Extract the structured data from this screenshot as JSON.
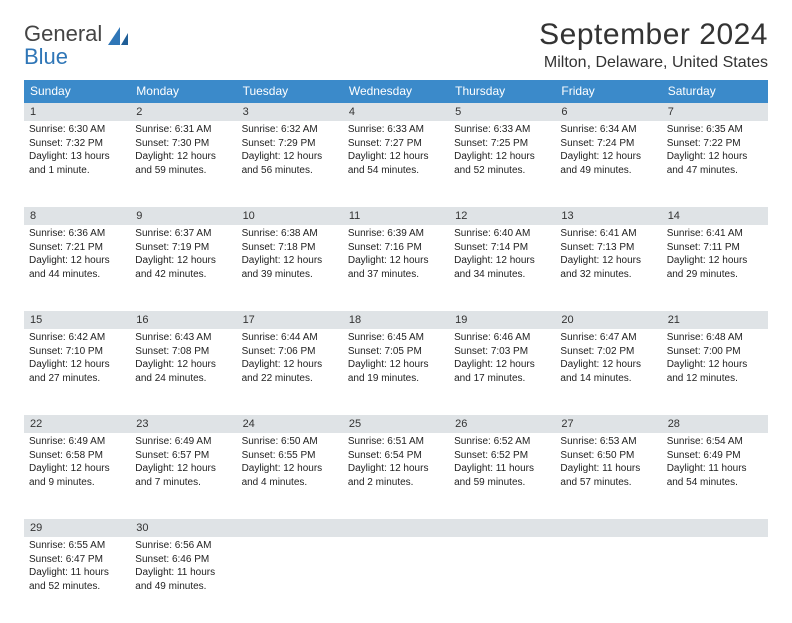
{
  "brand": {
    "line1": "General",
    "line2": "Blue"
  },
  "title": "September 2024",
  "location": "Milton, Delaware, United States",
  "colors": {
    "header_bg": "#3b8aca",
    "header_text": "#ffffff",
    "daynum_bg": "#dfe3e6",
    "rule": "#2f6fa6",
    "brand_blue": "#2f76b7",
    "text": "#222222",
    "title_text": "#333333"
  },
  "weekdays": [
    "Sunday",
    "Monday",
    "Tuesday",
    "Wednesday",
    "Thursday",
    "Friday",
    "Saturday"
  ],
  "weeks": [
    [
      {
        "n": "1",
        "sr": "Sunrise: 6:30 AM",
        "ss": "Sunset: 7:32 PM",
        "d1": "Daylight: 13 hours",
        "d2": "and 1 minute."
      },
      {
        "n": "2",
        "sr": "Sunrise: 6:31 AM",
        "ss": "Sunset: 7:30 PM",
        "d1": "Daylight: 12 hours",
        "d2": "and 59 minutes."
      },
      {
        "n": "3",
        "sr": "Sunrise: 6:32 AM",
        "ss": "Sunset: 7:29 PM",
        "d1": "Daylight: 12 hours",
        "d2": "and 56 minutes."
      },
      {
        "n": "4",
        "sr": "Sunrise: 6:33 AM",
        "ss": "Sunset: 7:27 PM",
        "d1": "Daylight: 12 hours",
        "d2": "and 54 minutes."
      },
      {
        "n": "5",
        "sr": "Sunrise: 6:33 AM",
        "ss": "Sunset: 7:25 PM",
        "d1": "Daylight: 12 hours",
        "d2": "and 52 minutes."
      },
      {
        "n": "6",
        "sr": "Sunrise: 6:34 AM",
        "ss": "Sunset: 7:24 PM",
        "d1": "Daylight: 12 hours",
        "d2": "and 49 minutes."
      },
      {
        "n": "7",
        "sr": "Sunrise: 6:35 AM",
        "ss": "Sunset: 7:22 PM",
        "d1": "Daylight: 12 hours",
        "d2": "and 47 minutes."
      }
    ],
    [
      {
        "n": "8",
        "sr": "Sunrise: 6:36 AM",
        "ss": "Sunset: 7:21 PM",
        "d1": "Daylight: 12 hours",
        "d2": "and 44 minutes."
      },
      {
        "n": "9",
        "sr": "Sunrise: 6:37 AM",
        "ss": "Sunset: 7:19 PM",
        "d1": "Daylight: 12 hours",
        "d2": "and 42 minutes."
      },
      {
        "n": "10",
        "sr": "Sunrise: 6:38 AM",
        "ss": "Sunset: 7:18 PM",
        "d1": "Daylight: 12 hours",
        "d2": "and 39 minutes."
      },
      {
        "n": "11",
        "sr": "Sunrise: 6:39 AM",
        "ss": "Sunset: 7:16 PM",
        "d1": "Daylight: 12 hours",
        "d2": "and 37 minutes."
      },
      {
        "n": "12",
        "sr": "Sunrise: 6:40 AM",
        "ss": "Sunset: 7:14 PM",
        "d1": "Daylight: 12 hours",
        "d2": "and 34 minutes."
      },
      {
        "n": "13",
        "sr": "Sunrise: 6:41 AM",
        "ss": "Sunset: 7:13 PM",
        "d1": "Daylight: 12 hours",
        "d2": "and 32 minutes."
      },
      {
        "n": "14",
        "sr": "Sunrise: 6:41 AM",
        "ss": "Sunset: 7:11 PM",
        "d1": "Daylight: 12 hours",
        "d2": "and 29 minutes."
      }
    ],
    [
      {
        "n": "15",
        "sr": "Sunrise: 6:42 AM",
        "ss": "Sunset: 7:10 PM",
        "d1": "Daylight: 12 hours",
        "d2": "and 27 minutes."
      },
      {
        "n": "16",
        "sr": "Sunrise: 6:43 AM",
        "ss": "Sunset: 7:08 PM",
        "d1": "Daylight: 12 hours",
        "d2": "and 24 minutes."
      },
      {
        "n": "17",
        "sr": "Sunrise: 6:44 AM",
        "ss": "Sunset: 7:06 PM",
        "d1": "Daylight: 12 hours",
        "d2": "and 22 minutes."
      },
      {
        "n": "18",
        "sr": "Sunrise: 6:45 AM",
        "ss": "Sunset: 7:05 PM",
        "d1": "Daylight: 12 hours",
        "d2": "and 19 minutes."
      },
      {
        "n": "19",
        "sr": "Sunrise: 6:46 AM",
        "ss": "Sunset: 7:03 PM",
        "d1": "Daylight: 12 hours",
        "d2": "and 17 minutes."
      },
      {
        "n": "20",
        "sr": "Sunrise: 6:47 AM",
        "ss": "Sunset: 7:02 PM",
        "d1": "Daylight: 12 hours",
        "d2": "and 14 minutes."
      },
      {
        "n": "21",
        "sr": "Sunrise: 6:48 AM",
        "ss": "Sunset: 7:00 PM",
        "d1": "Daylight: 12 hours",
        "d2": "and 12 minutes."
      }
    ],
    [
      {
        "n": "22",
        "sr": "Sunrise: 6:49 AM",
        "ss": "Sunset: 6:58 PM",
        "d1": "Daylight: 12 hours",
        "d2": "and 9 minutes."
      },
      {
        "n": "23",
        "sr": "Sunrise: 6:49 AM",
        "ss": "Sunset: 6:57 PM",
        "d1": "Daylight: 12 hours",
        "d2": "and 7 minutes."
      },
      {
        "n": "24",
        "sr": "Sunrise: 6:50 AM",
        "ss": "Sunset: 6:55 PM",
        "d1": "Daylight: 12 hours",
        "d2": "and 4 minutes."
      },
      {
        "n": "25",
        "sr": "Sunrise: 6:51 AM",
        "ss": "Sunset: 6:54 PM",
        "d1": "Daylight: 12 hours",
        "d2": "and 2 minutes."
      },
      {
        "n": "26",
        "sr": "Sunrise: 6:52 AM",
        "ss": "Sunset: 6:52 PM",
        "d1": "Daylight: 11 hours",
        "d2": "and 59 minutes."
      },
      {
        "n": "27",
        "sr": "Sunrise: 6:53 AM",
        "ss": "Sunset: 6:50 PM",
        "d1": "Daylight: 11 hours",
        "d2": "and 57 minutes."
      },
      {
        "n": "28",
        "sr": "Sunrise: 6:54 AM",
        "ss": "Sunset: 6:49 PM",
        "d1": "Daylight: 11 hours",
        "d2": "and 54 minutes."
      }
    ],
    [
      {
        "n": "29",
        "sr": "Sunrise: 6:55 AM",
        "ss": "Sunset: 6:47 PM",
        "d1": "Daylight: 11 hours",
        "d2": "and 52 minutes."
      },
      {
        "n": "30",
        "sr": "Sunrise: 6:56 AM",
        "ss": "Sunset: 6:46 PM",
        "d1": "Daylight: 11 hours",
        "d2": "and 49 minutes."
      },
      {
        "n": "",
        "sr": "",
        "ss": "",
        "d1": "",
        "d2": ""
      },
      {
        "n": "",
        "sr": "",
        "ss": "",
        "d1": "",
        "d2": ""
      },
      {
        "n": "",
        "sr": "",
        "ss": "",
        "d1": "",
        "d2": ""
      },
      {
        "n": "",
        "sr": "",
        "ss": "",
        "d1": "",
        "d2": ""
      },
      {
        "n": "",
        "sr": "",
        "ss": "",
        "d1": "",
        "d2": ""
      }
    ]
  ]
}
